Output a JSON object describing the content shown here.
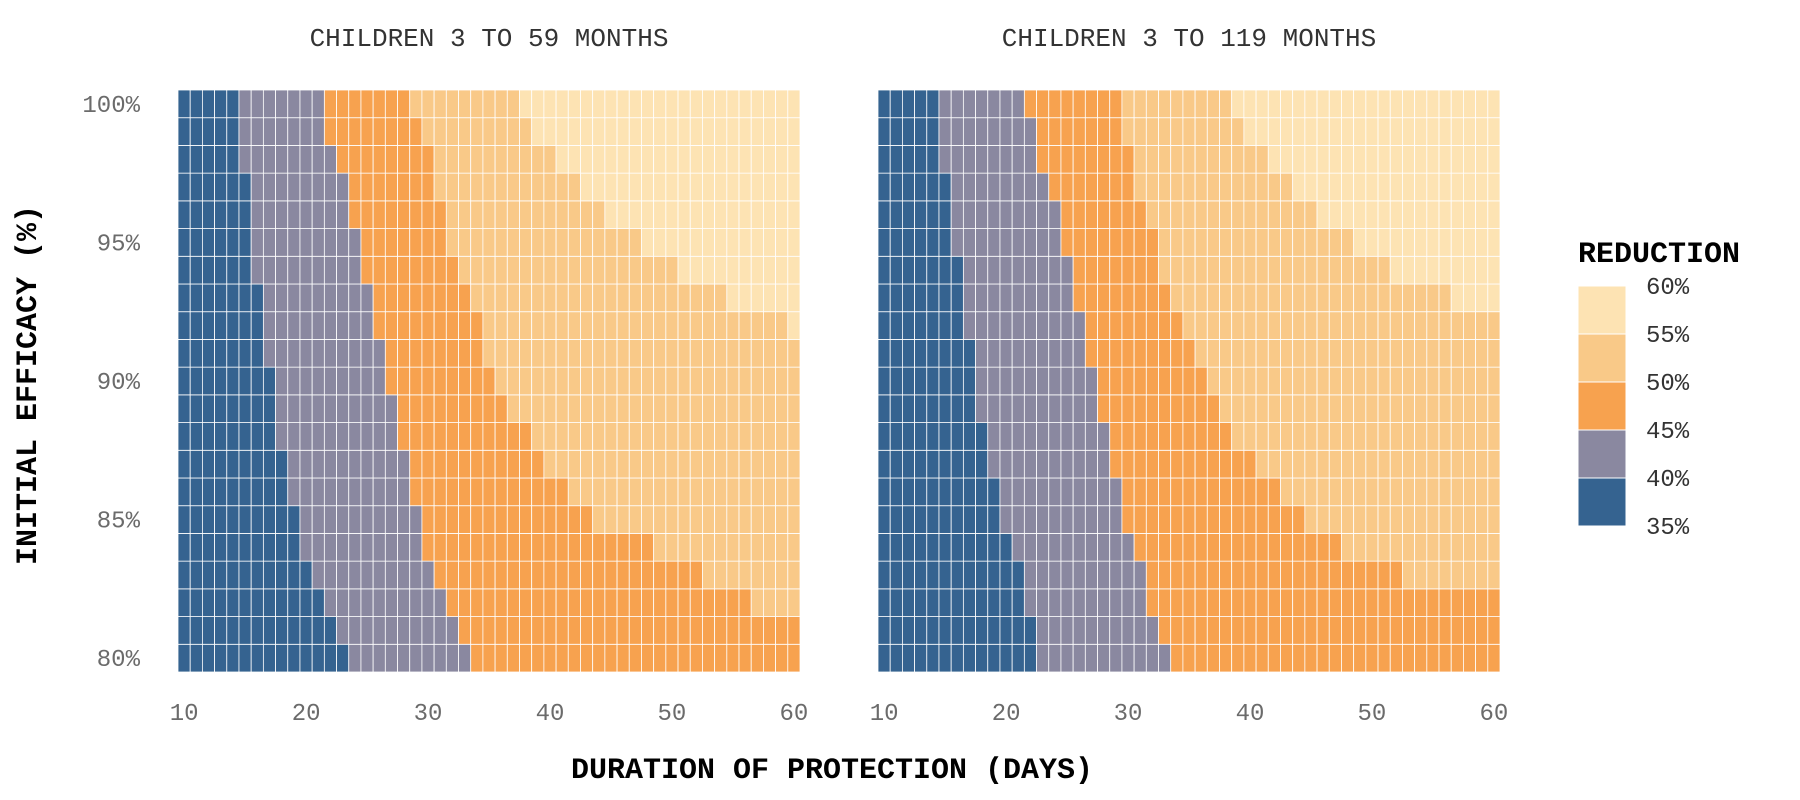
{
  "chart_data": {
    "type": "heatmap",
    "xlabel": "DURATION OF PROTECTION (DAYS)",
    "ylabel": "INITIAL EFFICACY (%)",
    "x_range": [
      10,
      60
    ],
    "x_step": 1,
    "y_range": [
      80,
      100
    ],
    "y_step": 1,
    "x_ticks": [
      10,
      20,
      30,
      40,
      50,
      60
    ],
    "x_tick_labels": [
      "10",
      "20",
      "30",
      "40",
      "50",
      "60"
    ],
    "y_ticks": [
      80,
      85,
      90,
      95,
      100
    ],
    "y_tick_labels": [
      "80%",
      "85%",
      "90%",
      "95%",
      "100%"
    ],
    "legend": {
      "title": "REDUCTION",
      "position": "right",
      "levels": [
        {
          "label": "60%",
          "color": "#FDE3B3"
        },
        {
          "label": "55%",
          "color": "#F9C988"
        },
        {
          "label": "50%",
          "color": "#F7A24F"
        },
        {
          "label": "45%",
          "color": "#8A88A0"
        },
        {
          "label": "40%",
          "color": "#356390"
        },
        {
          "label": "35%",
          "color": ""
        }
      ]
    },
    "band_colors": [
      "#356390",
      "#8A88A0",
      "#F7A24F",
      "#F9C988",
      "#FDE3B3"
    ],
    "panels": [
      {
        "title": "CHILDREN 3 TO 59 MONTHS",
        "band_edges": {
          "efficacy": [
            80,
            81,
            82,
            83,
            84,
            85,
            86,
            87,
            88,
            89,
            90,
            91,
            92,
            93,
            94,
            95,
            96,
            97,
            98,
            99,
            100
          ],
          "days_40pct": [
            24,
            23,
            22,
            21,
            20,
            20,
            19,
            19,
            18,
            18,
            18,
            17,
            17,
            17,
            16,
            16,
            16,
            16,
            15,
            15,
            15
          ],
          "days_45pct": [
            34,
            33,
            32,
            31,
            30,
            30,
            29,
            29,
            28,
            28,
            27,
            27,
            26,
            26,
            25,
            25,
            24,
            24,
            23,
            22,
            22
          ],
          "days_50pct": [
            61,
            61,
            57,
            53,
            49,
            44,
            42,
            40,
            39,
            37,
            36,
            35,
            35,
            34,
            33,
            32,
            32,
            31,
            31,
            30,
            29
          ],
          "days_55pct": [
            61,
            61,
            61,
            61,
            61,
            61,
            61,
            61,
            61,
            61,
            61,
            61,
            60,
            55,
            51,
            48,
            45,
            43,
            41,
            39,
            38
          ]
        }
      },
      {
        "title": "CHILDREN 3 TO 119 MONTHS",
        "band_edges": {
          "efficacy": [
            80,
            81,
            82,
            83,
            84,
            85,
            86,
            87,
            88,
            89,
            90,
            91,
            92,
            93,
            94,
            95,
            96,
            97,
            98,
            99,
            100
          ],
          "days_40pct": [
            23,
            23,
            22,
            22,
            21,
            20,
            20,
            19,
            19,
            18,
            18,
            18,
            17,
            17,
            17,
            16,
            16,
            16,
            15,
            15,
            15
          ],
          "days_45pct": [
            34,
            33,
            32,
            32,
            31,
            30,
            30,
            29,
            29,
            28,
            28,
            27,
            27,
            26,
            26,
            25,
            25,
            24,
            23,
            23,
            22
          ],
          "days_50pct": [
            61,
            61,
            61,
            53,
            48,
            45,
            43,
            41,
            39,
            38,
            37,
            36,
            35,
            34,
            33,
            33,
            32,
            31,
            31,
            30,
            30
          ],
          "days_55pct": [
            61,
            61,
            61,
            61,
            61,
            61,
            61,
            61,
            61,
            61,
            61,
            61,
            61,
            57,
            52,
            49,
            46,
            44,
            42,
            40,
            39
          ]
        }
      }
    ]
  }
}
